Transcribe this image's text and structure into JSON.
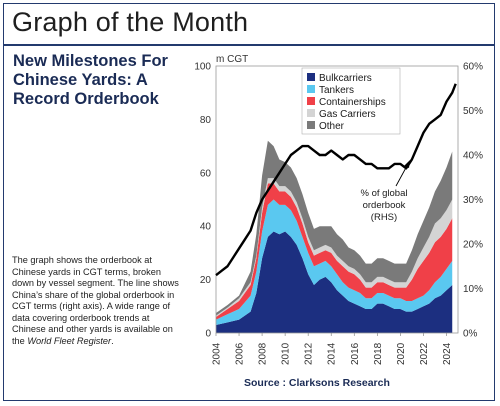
{
  "header": {
    "title": "Graph of the Month",
    "headline": "New Milestones For Chinese Yards: A Record Orderbook"
  },
  "description": {
    "text": "The graph shows the orderbook at Chinese yards in CGT terms, broken down by vessel segment. The line shows China’s share of the global orderbook in CGT terms (right axis). A wide range of data covering orderbook trends at Chinese and other yards is available on the ",
    "italic": "World Fleet Register",
    "end": "."
  },
  "source": "Source : Clarksons Research",
  "chart_data": {
    "type": "area",
    "title": "",
    "xlabel": "",
    "ylabel": "m CGT",
    "ylim": [
      0,
      100
    ],
    "y2lim": [
      0,
      60
    ],
    "y_ticks": [
      "0",
      "20",
      "40",
      "60",
      "80",
      "100"
    ],
    "y2_ticks": [
      "0%",
      "10%",
      "20%",
      "30%",
      "40%",
      "50%",
      "60%"
    ],
    "x_ticks": [
      "2004",
      "2006",
      "2008",
      "2010",
      "2012",
      "2014",
      "2016",
      "2018",
      "2020",
      "2022",
      "2024"
    ],
    "xlim": [
      2004,
      2025
    ],
    "x": [
      2004,
      2005,
      2006,
      2007,
      2007.5,
      2008,
      2008.5,
      2009,
      2009.5,
      2010,
      2010.5,
      2011,
      2011.5,
      2012,
      2012.5,
      2013,
      2013.5,
      2014,
      2014.5,
      2015,
      2015.5,
      2016,
      2016.5,
      2017,
      2017.5,
      2018,
      2018.5,
      2019,
      2019.5,
      2020,
      2020.5,
      2021,
      2021.5,
      2022,
      2022.5,
      2023,
      2023.5,
      2024,
      2024.5
    ],
    "series": [
      {
        "name": "Bulkcarriers",
        "color": "#1c2f80",
        "values": [
          3,
          4,
          5,
          8,
          15,
          28,
          36,
          38,
          37,
          38,
          36,
          33,
          28,
          22,
          18,
          20,
          21,
          19,
          16,
          14,
          12,
          11,
          10,
          9,
          9,
          11,
          11,
          10,
          9,
          9,
          8,
          8,
          9,
          10,
          11,
          13,
          14,
          16,
          18
        ]
      },
      {
        "name": "Tankers",
        "color": "#5ac8f0",
        "values": [
          2,
          3,
          4,
          6,
          8,
          10,
          12,
          12,
          11,
          10,
          10,
          9,
          8,
          8,
          7,
          6,
          6,
          6,
          6,
          5,
          5,
          5,
          5,
          4,
          4,
          4,
          4,
          4,
          4,
          4,
          4,
          4,
          4,
          4,
          5,
          6,
          7,
          8,
          9
        ]
      },
      {
        "name": "Containerships",
        "color": "#f04048",
        "values": [
          1,
          2,
          3,
          4,
          5,
          7,
          8,
          6,
          5,
          5,
          5,
          5,
          5,
          4,
          4,
          4,
          4,
          5,
          5,
          6,
          6,
          6,
          5,
          4,
          4,
          4,
          4,
          4,
          4,
          4,
          5,
          8,
          11,
          13,
          14,
          15,
          15,
          15,
          16
        ]
      },
      {
        "name": "Gas Carriers",
        "color": "#d4d4d4",
        "values": [
          0.5,
          0.5,
          1,
          1,
          1,
          2,
          2,
          2,
          2,
          2,
          2,
          2,
          2,
          2,
          2,
          2,
          2,
          2,
          2,
          2,
          2,
          2,
          2,
          2,
          2,
          2,
          2,
          2,
          2,
          2,
          2,
          3,
          4,
          5,
          6,
          7,
          7,
          7,
          7
        ]
      },
      {
        "name": "Other",
        "color": "#7a7a7a",
        "values": [
          1,
          1,
          1,
          4,
          8,
          12,
          14,
          12,
          10,
          9,
          9,
          9,
          9,
          9,
          8,
          8,
          7,
          8,
          8,
          8,
          7,
          7,
          7,
          7,
          7,
          7,
          7,
          7,
          7,
          7,
          7,
          8,
          9,
          10,
          11,
          12,
          14,
          16,
          18
        ]
      }
    ],
    "line": {
      "name": "% of global orderbook (RHS)",
      "axis": "right",
      "color": "#000000",
      "x": [
        2004,
        2004.5,
        2005,
        2005.5,
        2006,
        2006.5,
        2007,
        2007.5,
        2008,
        2008.5,
        2009,
        2009.5,
        2010,
        2010.5,
        2011,
        2011.5,
        2012,
        2012.5,
        2013,
        2013.5,
        2014,
        2014.5,
        2015,
        2015.5,
        2016,
        2016.5,
        2017,
        2017.5,
        2018,
        2018.5,
        2019,
        2019.5,
        2020,
        2020.5,
        2021,
        2021.5,
        2022,
        2022.5,
        2023,
        2023.5,
        2024,
        2024.5,
        2024.8
      ],
      "values": [
        13,
        14,
        15,
        17,
        19,
        21,
        23,
        27,
        30,
        32,
        34,
        36,
        38,
        40,
        41,
        42,
        42,
        41,
        40,
        40,
        41,
        40,
        39,
        40,
        40,
        39,
        38,
        38,
        37,
        37,
        37,
        38,
        38,
        37,
        39,
        42,
        45,
        47,
        48,
        49,
        52,
        54,
        56
      ]
    },
    "annotation": [
      "% of global",
      "orderbook",
      "(RHS)"
    ],
    "legend_position": "top-right"
  }
}
